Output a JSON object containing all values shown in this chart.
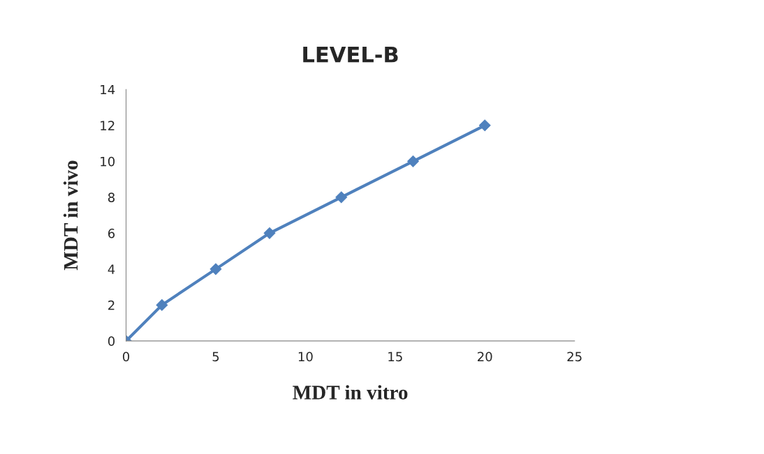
{
  "chart_data": {
    "type": "line",
    "title": "LEVEL-B",
    "xlabel": "MDT in vitro",
    "ylabel": "MDT in vivo",
    "x": [
      0,
      2,
      5,
      8,
      12,
      16,
      20
    ],
    "series": [
      {
        "color": "#4f81bd",
        "values": [
          0,
          2,
          4,
          6,
          8,
          10,
          12
        ]
      }
    ],
    "xlim": [
      0,
      25
    ],
    "xticks": [
      0,
      5,
      10,
      15,
      20,
      25
    ],
    "ylim": [
      0,
      14
    ],
    "yticks": [
      0,
      2,
      4,
      6,
      8,
      10,
      12,
      14
    ],
    "marker": "diamond",
    "line_style": "solid",
    "grid": false,
    "legend": false
  }
}
